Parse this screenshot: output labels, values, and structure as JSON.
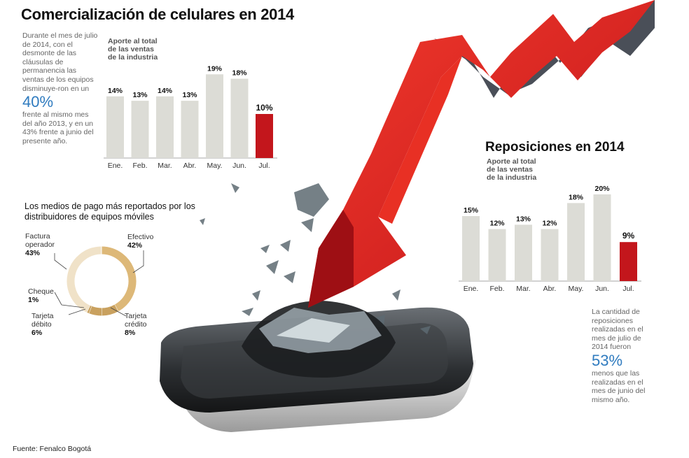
{
  "main_title": "Comercialización de celulares en 2014",
  "intro": {
    "text_before": "Durante el mes de julio de 2014, con el desmonte de las cláusulas de permanencia las ventas de los equipos disminuye-ron en un",
    "big_value": "40%",
    "text_after": "frente al mismo mes del año 2013, y en un 43% frente a junio del presente año."
  },
  "reposiciones_title": "Reposiciones en 2014",
  "reposiciones_text": {
    "text_before": "La cantidad de reposiciones realizadas en el mes de julio de 2014 fueron",
    "big_value": "53%",
    "text_after": "menos que las realizadas en el mes de junio del mismo año."
  },
  "payment_title": "Los medios de pago más reportados por los distribuidores de equipos móviles",
  "source": "Fuente: Fenalco Bogotá",
  "colors": {
    "bar": "#dcdcd6",
    "highlight": "#c3161c",
    "donut_light": "#f0e2c8",
    "donut_dark": "#ddb878",
    "accent_text": "#2f7bbf"
  },
  "chart_data": [
    {
      "type": "bar",
      "title": "Aporte al total de las ventas de la industria",
      "title_lines": [
        "Aporte al total",
        "de las ventas",
        "de la industria"
      ],
      "categories": [
        "Ene.",
        "Feb.",
        "Mar.",
        "Abr.",
        "May.",
        "Jun.",
        "Jul."
      ],
      "values": [
        14,
        13,
        14,
        13,
        19,
        18,
        10
      ],
      "labels": [
        "14%",
        "13%",
        "14%",
        "13%",
        "19%",
        "18%",
        "10%"
      ],
      "highlight_index": 6,
      "unit": "%",
      "ylim": [
        0,
        20
      ]
    },
    {
      "type": "bar",
      "title": "Aporte al total de las ventas de la industria",
      "title_lines": [
        "Aporte al total",
        "de las ventas",
        "de la industria"
      ],
      "categories": [
        "Ene.",
        "Feb.",
        "Mar.",
        "Abr.",
        "May.",
        "Jun.",
        "Jul."
      ],
      "values": [
        15,
        12,
        13,
        12,
        18,
        20,
        9
      ],
      "labels": [
        "15%",
        "12%",
        "13%",
        "12%",
        "18%",
        "20%",
        "9%"
      ],
      "highlight_index": 6,
      "unit": "%",
      "ylim": [
        0,
        20
      ]
    },
    {
      "type": "pie",
      "title": "Los medios de pago más reportados por los distribuidores de equipos móviles",
      "categories": [
        "Efectivo",
        "Tarjeta crédito",
        "Tarjeta débito",
        "Cheque",
        "Factura operador"
      ],
      "values": [
        42,
        8,
        6,
        1,
        43
      ],
      "labels": [
        "42%",
        "8%",
        "6%",
        "1%",
        "43%"
      ],
      "style": "donut"
    }
  ]
}
